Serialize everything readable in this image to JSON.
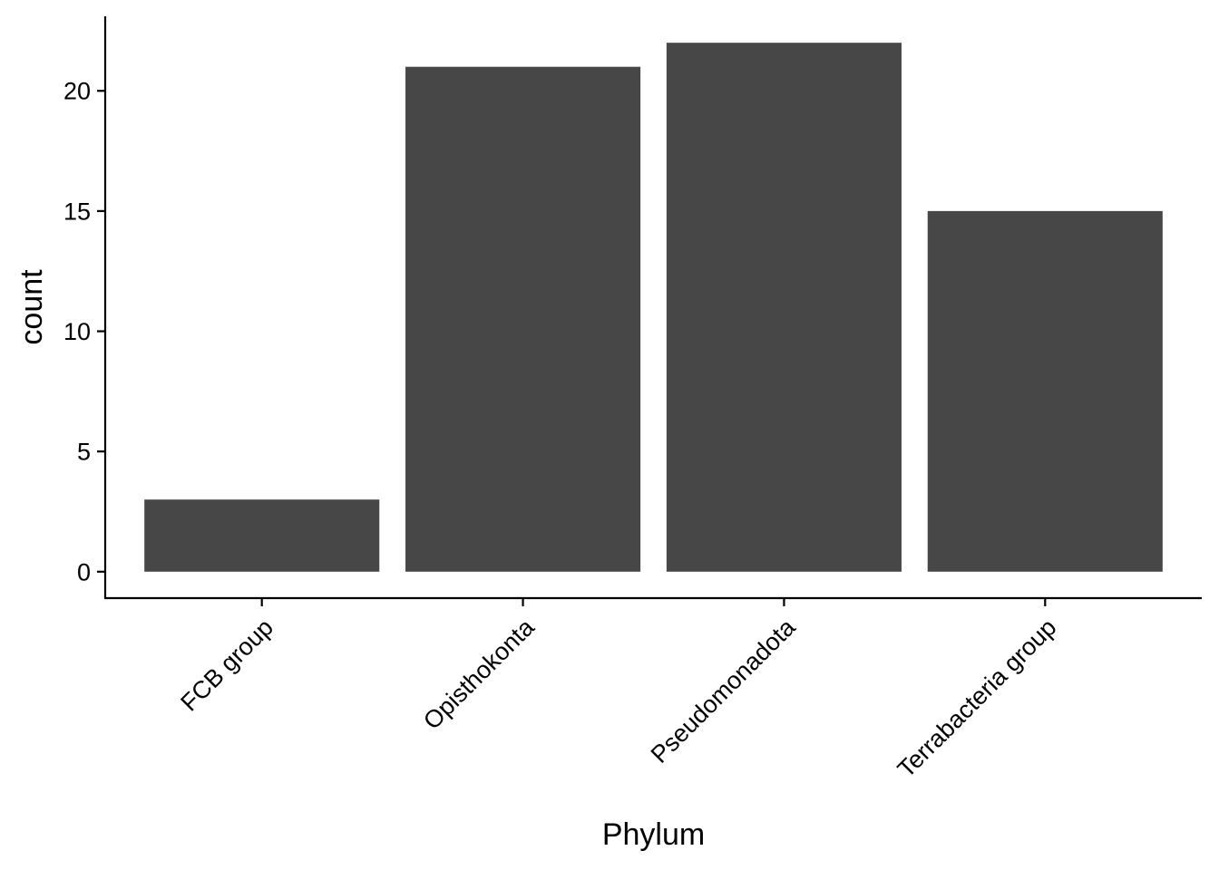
{
  "chart_data": {
    "type": "bar",
    "title": "",
    "xlabel": "Phylum",
    "ylabel": "count",
    "categories": [
      "FCB group",
      "Opisthokonta",
      "Pseudomonadota",
      "Terrabacteria group"
    ],
    "values": [
      3,
      21,
      22,
      15
    ],
    "ylim": [
      -1.1,
      23.1
    ],
    "yticks": [
      0,
      5,
      10,
      15,
      20
    ],
    "grid": false,
    "legend": "none",
    "bar_color": "#474747",
    "axis_color": "#000000",
    "background": "#ffffff"
  }
}
